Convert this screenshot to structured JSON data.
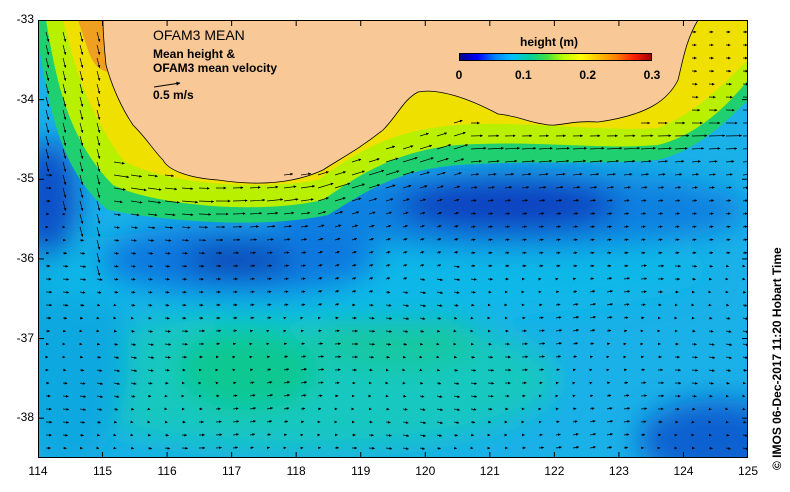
{
  "map": {
    "title": "OFAM3 MEAN",
    "subtitle_line1": "Mean height &",
    "subtitle_line2": "OFAM3 mean velocity",
    "reference_vector": "0.5 m/s",
    "credit": "© IMOS 06-Dec-2017 11:20 Hobart Time",
    "lon_ticks": [
      "114",
      "115",
      "116",
      "117",
      "118",
      "119",
      "120",
      "121",
      "122",
      "123",
      "124",
      "125"
    ],
    "lat_ticks": [
      "-33",
      "-34",
      "-35",
      "-36",
      "-37",
      "-38"
    ],
    "extent": {
      "lon": [
        114,
        125
      ],
      "lat": [
        -38.5,
        -33
      ]
    },
    "land_color": "#f8c896",
    "colorbar": {
      "title": "height (m)",
      "ticks": [
        "0",
        "0.1",
        "0.2",
        "0.3"
      ],
      "range": [
        0,
        0.3
      ],
      "colors": [
        "#00008b",
        "#0000ff",
        "#0080ff",
        "#00c0ff",
        "#00d0a0",
        "#40e040",
        "#c0ff00",
        "#ffff00",
        "#ffc000",
        "#ff8000",
        "#ff2000",
        "#a00000"
      ]
    }
  }
}
